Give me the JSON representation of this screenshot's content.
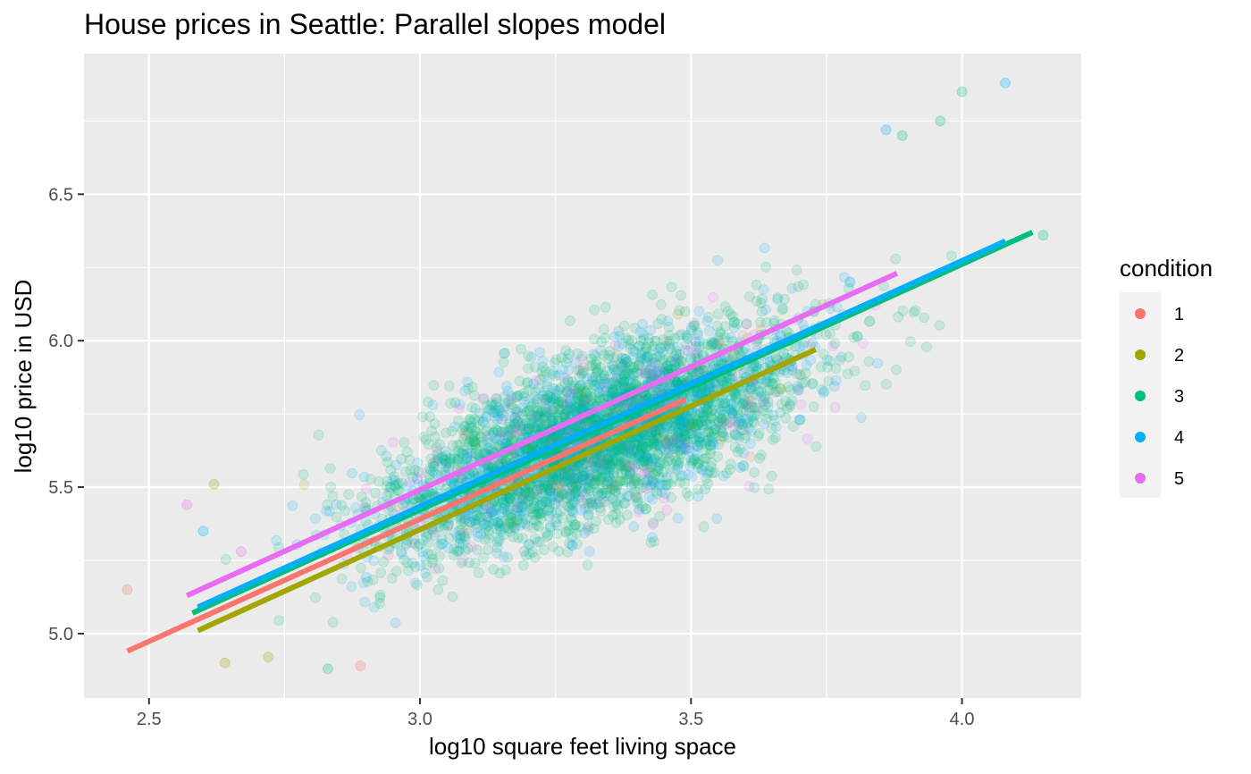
{
  "chart_data": {
    "type": "scatter",
    "title": "House prices in Seattle: Parallel slopes model",
    "xlabel": "log10 square feet living space",
    "ylabel": "log10 price in USD",
    "xlim": [
      2.38,
      4.22
    ],
    "ylim": [
      4.78,
      6.98
    ],
    "x_ticks": [
      2.5,
      3.0,
      3.5,
      4.0
    ],
    "y_ticks": [
      5.0,
      5.5,
      6.0,
      6.5
    ],
    "x_tick_labels": [
      "2.5",
      "3.0",
      "3.5",
      "4.0"
    ],
    "y_tick_labels": [
      "5.0",
      "5.5",
      "6.0",
      "6.5"
    ],
    "grid": true,
    "legend": {
      "title": "condition",
      "placement": "right"
    },
    "series": [
      {
        "name": "1",
        "color": "#F8766D",
        "line": {
          "x": [
            2.46,
            3.49
          ],
          "y": [
            4.94,
            5.8
          ]
        }
      },
      {
        "name": "2",
        "color": "#A3A500",
        "line": {
          "x": [
            2.59,
            3.73
          ],
          "y": [
            5.01,
            5.97
          ]
        }
      },
      {
        "name": "3",
        "color": "#00BF7D",
        "line": {
          "x": [
            2.58,
            4.13
          ],
          "y": [
            5.07,
            6.37
          ]
        }
      },
      {
        "name": "4",
        "color": "#00B0F6",
        "line": {
          "x": [
            2.59,
            4.08
          ],
          "y": [
            5.09,
            6.34
          ]
        }
      },
      {
        "name": "5",
        "color": "#E76BF3",
        "line": {
          "x": [
            2.57,
            3.88
          ],
          "y": [
            5.13,
            6.23
          ]
        }
      }
    ],
    "scatter_summary": {
      "x_mean": 3.32,
      "y_mean": 5.67,
      "x_sd": 0.19,
      "y_sd": 0.19,
      "correlation": 0.69,
      "point_opacity": 0.15,
      "mix": {
        "1": 0.01,
        "2": 0.01,
        "3": 0.65,
        "4": 0.26,
        "5": 0.07
      },
      "outliers": [
        {
          "x": 2.46,
          "y": 5.15,
          "series": "1"
        },
        {
          "x": 2.62,
          "y": 5.51,
          "series": "2"
        },
        {
          "x": 2.64,
          "y": 4.9,
          "series": "2"
        },
        {
          "x": 2.72,
          "y": 4.92,
          "series": "2"
        },
        {
          "x": 2.83,
          "y": 4.88,
          "series": "3"
        },
        {
          "x": 2.89,
          "y": 4.89,
          "series": "1"
        },
        {
          "x": 4.08,
          "y": 6.88,
          "series": "4"
        },
        {
          "x": 4.0,
          "y": 6.85,
          "series": "3"
        },
        {
          "x": 3.96,
          "y": 6.75,
          "series": "3"
        },
        {
          "x": 3.86,
          "y": 6.72,
          "series": "4"
        },
        {
          "x": 3.89,
          "y": 6.7,
          "series": "3"
        },
        {
          "x": 4.15,
          "y": 6.36,
          "series": "3"
        },
        {
          "x": 3.7,
          "y": 5.73,
          "series": "4"
        },
        {
          "x": 2.6,
          "y": 5.35,
          "series": "4"
        },
        {
          "x": 2.57,
          "y": 5.44,
          "series": "5"
        },
        {
          "x": 2.67,
          "y": 5.28,
          "series": "5"
        }
      ]
    }
  }
}
